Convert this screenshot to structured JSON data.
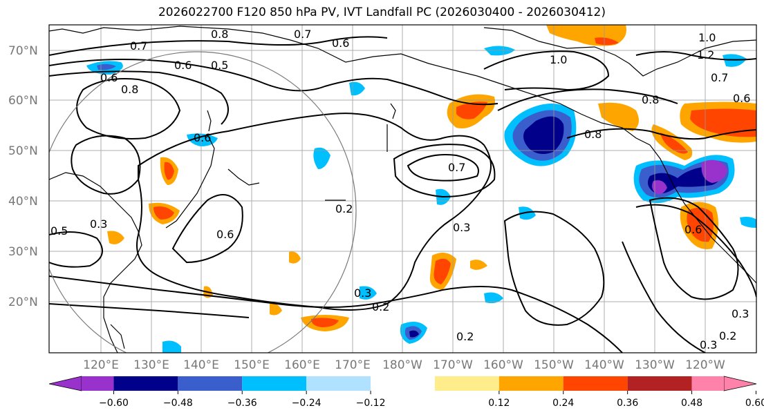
{
  "title": "2026022700 F120 850 hPa PV, IVT Landfall PC (2026030400 - 2026030412)",
  "lat_labels": [
    "70°N",
    "60°N",
    "50°N",
    "40°N",
    "30°N",
    "20°N"
  ],
  "lon_labels": [
    "120°E",
    "130°E",
    "140°E",
    "150°E",
    "160°E",
    "170°E",
    "180°W",
    "170°W",
    "160°W",
    "150°W",
    "140°W",
    "130°W",
    "120°W"
  ],
  "colorbar": {
    "ticks": [
      "−0.60",
      "−0.48",
      "−0.36",
      "−0.24",
      "−0.12",
      "0.12",
      "0.24",
      "0.36",
      "0.48",
      "0.60"
    ],
    "colors": [
      "#9932cc",
      "#00008b",
      "#3a5fcd",
      "#00bfff",
      "#b0e2ff",
      "#ffffff",
      "#ffec8b",
      "#ffa500",
      "#ff4500",
      "#b22222",
      "#ff82ab"
    ]
  },
  "contour_labels": [
    "0.8",
    "0.7",
    "0.6",
    "0.6",
    "0.5",
    "0.6",
    "0.8",
    "1.0",
    "0.7",
    "0.6",
    "0.6",
    "0.3",
    "0.6",
    "1.0",
    "1.2",
    "0.7",
    "0.6",
    "0.8",
    "0.8",
    "0.7",
    "0.2",
    "0.3",
    "0.3",
    "0.2",
    "0.2",
    "0.3",
    "0.2",
    "0.3",
    "0.5"
  ]
}
